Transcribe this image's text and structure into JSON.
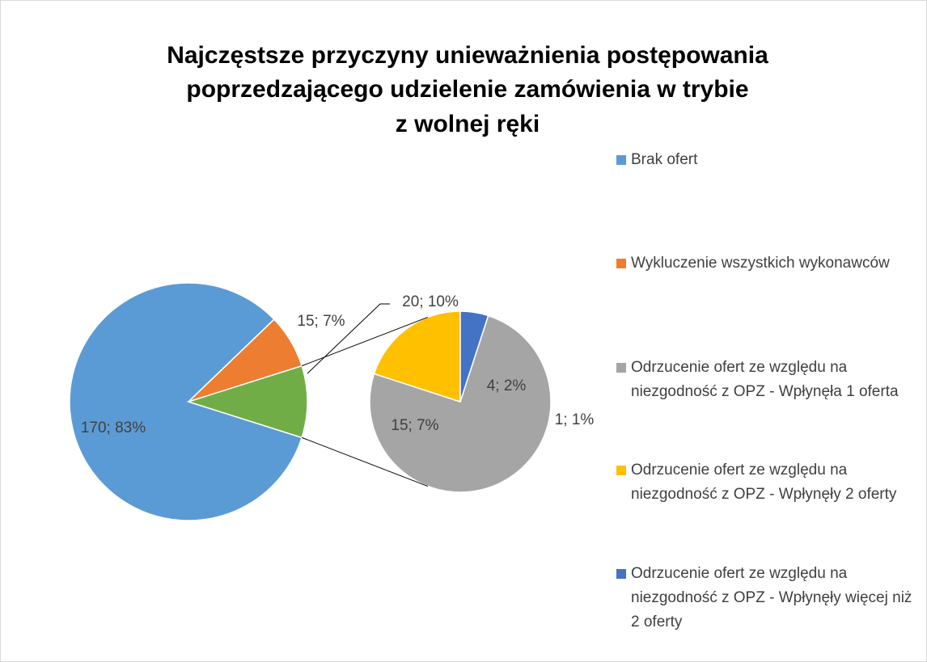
{
  "chart_data": {
    "type": "pie-of-pie",
    "title": [
      "Najczęstsze przyczyny unieważnienia postępowania",
      "poprzedzającego udzielenie zamówienia w trybie",
      "z wolnej ręki"
    ],
    "categories": [
      "Brak ofert",
      "Wykluczenie wszystkich wykonawców",
      "Odrzucenie ofert ze względu na niezgodność z OPZ - Wpłynęła 1 oferta",
      "Odrzucenie ofert ze względu na niezgodność z OPZ - Wpłynęły 2 oferty",
      "Odrzucenie ofert ze względu na niezgodność z OPZ - Wpłynęły więcej niż 2 oferty"
    ],
    "values": [
      170,
      15,
      15,
      4,
      1
    ],
    "value_labels": [
      "170; 83%",
      "15; 7%",
      "15; 7%",
      "4; 2%",
      "1; 1%"
    ],
    "colors": [
      "#5b9bd5",
      "#ed7d31",
      "#a5a5a5",
      "#ffc000",
      "#4472c4"
    ],
    "secondary_count": 3,
    "other": {
      "value": 20,
      "label": "20; 10%",
      "color": "#70ad47"
    },
    "legend": "right"
  }
}
